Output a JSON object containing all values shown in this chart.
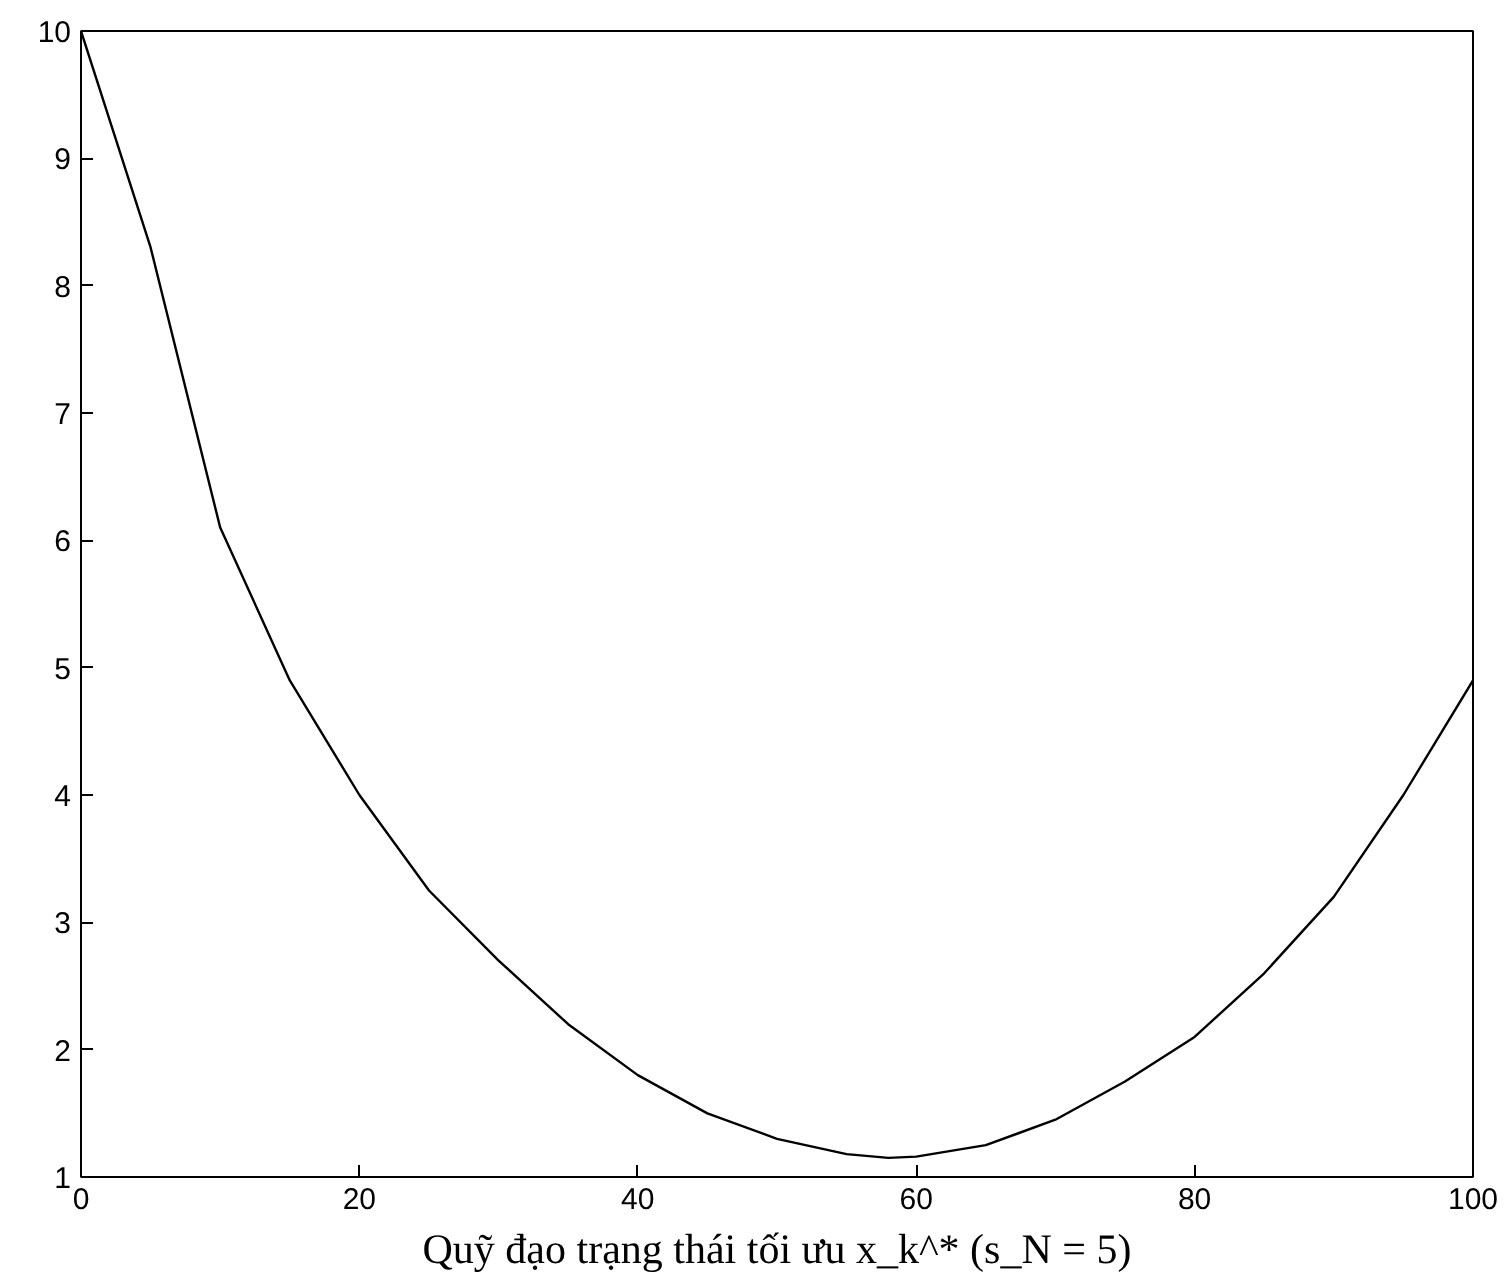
{
  "chart_data": {
    "type": "line",
    "xlabel": "Quỹ đạo trạng thái tối ưu x_k^* (s_N = 5)",
    "x": [
      0,
      5,
      10,
      15,
      20,
      25,
      30,
      35,
      40,
      45,
      50,
      55,
      58,
      60,
      65,
      70,
      75,
      80,
      85,
      90,
      95,
      100
    ],
    "series": [
      {
        "color": "#000000",
        "values": [
          10,
          8.3,
          6.1,
          4.9,
          4.0,
          3.25,
          2.7,
          2.2,
          1.8,
          1.5,
          1.3,
          1.18,
          1.15,
          1.16,
          1.25,
          1.45,
          1.75,
          2.1,
          2.6,
          3.2,
          4.0,
          4.9
        ]
      }
    ],
    "xlim": [
      0,
      100
    ],
    "ylim": [
      1,
      10
    ],
    "xticks": [
      0,
      20,
      40,
      60,
      80,
      100
    ],
    "yticks": [
      1,
      2,
      3,
      4,
      5,
      6,
      7,
      8,
      9,
      10
    ],
    "grid": false,
    "marker": "none",
    "line_style": "solid"
  }
}
